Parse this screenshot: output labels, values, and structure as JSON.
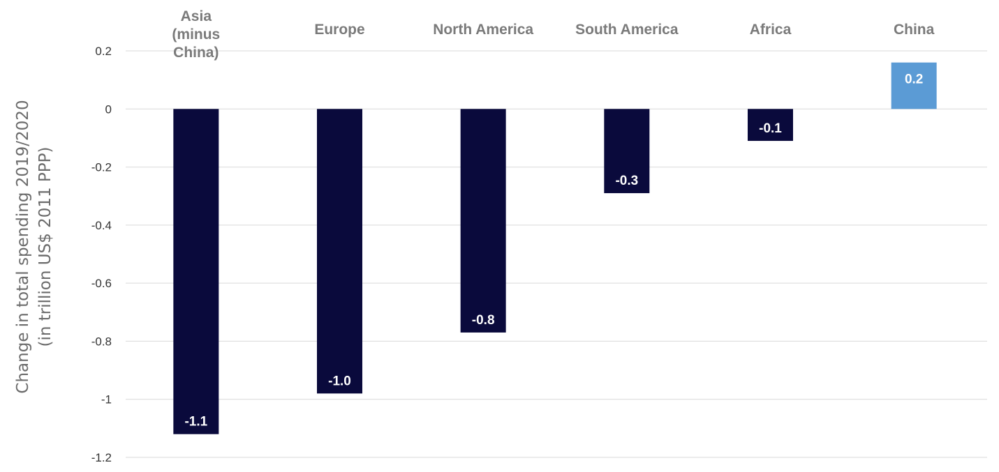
{
  "chart_data": {
    "type": "bar",
    "categories": [
      [
        "Asia",
        "(minus",
        "China)"
      ],
      [
        "Europe"
      ],
      [
        "North America"
      ],
      [
        "South America"
      ],
      [
        "Africa"
      ],
      [
        "China"
      ]
    ],
    "values": [
      -1.12,
      -0.98,
      -0.77,
      -0.29,
      -0.11,
      0.16
    ],
    "data_labels": [
      "-1.1",
      "-1.0",
      "-0.8",
      "-0.3",
      "-0.1",
      "0.2"
    ],
    "bar_colors": [
      "#0a0a3c",
      "#0a0a3c",
      "#0a0a3c",
      "#0a0a3c",
      "#0a0a3c",
      "#5b9bd5"
    ],
    "ylabel": [
      "Change in total spending 2019/2020",
      "(in trillion US$ 2011 PPP)"
    ],
    "ylim": [
      -1.2,
      0.2
    ],
    "yticks": [
      0.2,
      0,
      -0.2,
      -0.4,
      -0.6,
      -0.8,
      -1,
      -1.2
    ],
    "ytick_labels": [
      "0.2",
      "0",
      "-0.2",
      "-0.4",
      "-0.6",
      "-0.8",
      "-1",
      "-1.2"
    ],
    "grid": true,
    "category_labels_position": "top"
  }
}
